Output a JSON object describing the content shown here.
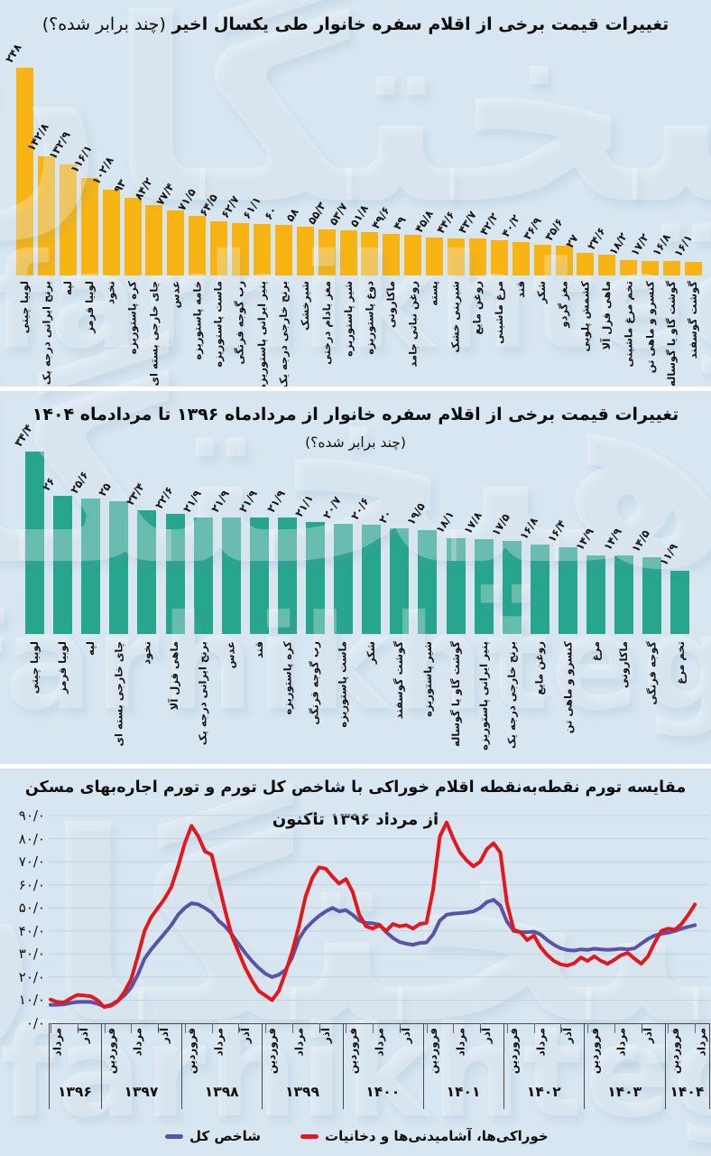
{
  "watermark": {
    "fa": "فرهیختگان",
    "en": "farhikhtegan"
  },
  "chart_data": [
    {
      "type": "bar",
      "title": "تغییرات قیمت برخی از اقلام سفره خانوار طی یکسال اخیر",
      "subtitle": "(چند برابر شده؟)",
      "bar_color": "#f7b412",
      "categories": [
        "لوبیا چیتی",
        "برنج ایرانی درجه یک",
        "لپه",
        "لوبیا قرمز",
        "نخود",
        "کره پاستوریزه",
        "چای خارجی بسته ای",
        "عدس",
        "خامه پاستوریزه",
        "ماست پاستوریزه",
        "رب گوجه فرنگی",
        "پنیر ایرانی پاستوریزه",
        "برنج خارجی درجه یک",
        "شیرخشک",
        "مغز بادام درختی",
        "شیر پاستوریزه",
        "دوغ پاستوریزه",
        "ماکارونی",
        "روغن نباتی جامد",
        "پسته",
        "شیرینی خشک",
        "روغن مایع",
        "مرغ ماشینی",
        "قند",
        "شکر",
        "مغز گردو",
        "کشمش پلویی",
        "ماهی قزل آلا",
        "تخم مرغ ماشینی",
        "کنسرو و ماهی تن",
        "گوشت گاو یا گوساله",
        "گوشت گوسفند"
      ],
      "values": [
        248,
        142.8,
        132.9,
        116.1,
        102.8,
        93,
        84.2,
        77.4,
        71.5,
        64.5,
        62.7,
        61.1,
        60,
        58,
        55.3,
        53.7,
        51.8,
        49.6,
        49,
        45.8,
        44.6,
        43.7,
        42.2,
        40.2,
        36.9,
        35.6,
        27,
        24.6,
        18.2,
        17.2,
        16.8,
        16.1
      ],
      "value_labels": [
        "۲۴۸",
        "۱۴۲/۸",
        "۱۳۲/۹",
        "۱۱۶/۱",
        "۱۰۲/۸",
        "۹۳",
        "۸۴/۲",
        "۷۷/۴",
        "۷۱/۵",
        "۶۴/۵",
        "۶۲/۷",
        "۶۱/۱",
        "۶۰",
        "۵۸",
        "۵۵/۳",
        "۵۳/۷",
        "۵۱/۸",
        "۴۹/۶",
        "۴۹",
        "۴۵/۸",
        "۴۴/۶",
        "۴۳/۷",
        "۴۲/۲",
        "۴۰/۲",
        "۳۶/۹",
        "۳۵/۶",
        "۲۷",
        "۲۴/۶",
        "۱۸/۲",
        "۱۷/۲",
        "۱۶/۸",
        "۱۶/۱"
      ]
    },
    {
      "type": "bar",
      "title": "تغییرات قیمت برخی از اقلام سفره خانوار از مردادماه ۱۳۹۶ تا مردادماه ۱۴۰۴",
      "subtitle": "(چند برابر شده؟)",
      "bar_color": "#28a58e",
      "categories": [
        "لوبیا چیتی",
        "لوبیا قرمز",
        "لپه",
        "چای خارجی بسته ای",
        "نخود",
        "ماهی قزل آلا",
        "برنج ایرانی درجه یک",
        "عدس",
        "قند",
        "کره پاستوریزه",
        "رب گوجه فرنگی",
        "ماست پاستوریزه",
        "شکر",
        "گوشت گوسفند",
        "شیر پاستوریزه",
        "گوشت گاو یا گوساله",
        "پنیر ایرانی پاستوریزه",
        "برنج خارجی درجه یک",
        "روغن مایع",
        "کنسرو و ماهی تن",
        "مرغ",
        "ماکارونی",
        "گوجه فرنگی",
        "تخم مرغ"
      ],
      "values": [
        34.4,
        26,
        25.6,
        25,
        23.4,
        22.6,
        21.9,
        21.9,
        21.9,
        21.9,
        21.1,
        20.7,
        20.6,
        20,
        19.5,
        18.1,
        17.8,
        17.5,
        16.8,
        16.4,
        14.9,
        14.9,
        14.5,
        11.9
      ],
      "value_labels": [
        "۳۴/۴",
        "۲۶",
        "۲۵/۶",
        "۲۵",
        "۲۳/۴",
        "۲۲/۶",
        "۲۱/۹",
        "۲۱/۹",
        "۲۱/۹",
        "۲۱/۹",
        "۲۱/۱",
        "۲۰/۷",
        "۲۰/۶",
        "۲۰",
        "۱۹/۵",
        "۱۸/۱",
        "۱۷/۸",
        "۱۷/۵",
        "۱۶/۸",
        "۱۶/۴",
        "۱۴/۹",
        "۱۴/۹",
        "۱۴/۵",
        "۱۱/۹"
      ]
    },
    {
      "type": "line",
      "title": "مقایسه تورم نقطه‌به‌نقطه اقلام خوراکی با شاخص کل تورم و تورم اجاره‌بهای مسکن",
      "title_line2": "از مرداد ۱۳۹۶ تاکنون",
      "ylim": [
        0,
        90
      ],
      "y_ticks": [
        "۹۰/۰",
        "۸۰/۰",
        "۷۰/۰",
        "۶۰/۰",
        "۵۰/۰",
        "۴۰/۰",
        "۳۰/۰",
        "۲۰/۰",
        "۱۰/۰",
        "۰/۰"
      ],
      "x_years": [
        {
          "year": "۱۳۹۶",
          "months": [
            "مرداد",
            "آذر"
          ]
        },
        {
          "year": "۱۳۹۷",
          "months": [
            "فروردین",
            "مرداد",
            "آذر"
          ]
        },
        {
          "year": "۱۳۹۸",
          "months": [
            "فروردین",
            "مرداد",
            "آذر"
          ]
        },
        {
          "year": "۱۳۹۹",
          "months": [
            "فروردین",
            "مرداد",
            "آذر"
          ]
        },
        {
          "year": "۱۴۰۰",
          "months": [
            "فروردین",
            "مرداد",
            "آذر"
          ]
        },
        {
          "year": "۱۴۰۱",
          "months": [
            "فروردین",
            "مرداد",
            "آذر"
          ]
        },
        {
          "year": "۱۴۰۲",
          "months": [
            "فروردین",
            "مرداد",
            "آذر"
          ]
        },
        {
          "year": "۱۴۰۳",
          "months": [
            "فروردین",
            "مرداد",
            "آذر"
          ]
        },
        {
          "year": "۱۴۰۴",
          "months": [
            "فروردین",
            "مرداد"
          ]
        }
      ],
      "series": [
        {
          "name": "خوراکی‌ها، آشامیدنی‌ها و دخانیات",
          "color": "#e2181d",
          "values": [
            10.3,
            9.2,
            9,
            10.8,
            12.3,
            12,
            11.7,
            10,
            7,
            7.6,
            9.5,
            13.5,
            19,
            29,
            40,
            46,
            50,
            54,
            59,
            68,
            78,
            85.5,
            81,
            74.5,
            73,
            61,
            49,
            38,
            31,
            24,
            18.5,
            14,
            12,
            10,
            14,
            22,
            31,
            42,
            55,
            63,
            67.5,
            67,
            63.5,
            60.5,
            62.5,
            57,
            47,
            42,
            41,
            42.5,
            40,
            43,
            42,
            42.5,
            41,
            43,
            43.5,
            58,
            81,
            87,
            80,
            74,
            70.5,
            68,
            70,
            75.5,
            78,
            74,
            52,
            40.5,
            39.5,
            36,
            38,
            33,
            29.5,
            27,
            25.5,
            25,
            26,
            28.5,
            27,
            29,
            27,
            25.8,
            27.5,
            29.5,
            30.5,
            28,
            25.8,
            29,
            35,
            40,
            41,
            40.5,
            43,
            47,
            51.5
          ]
        },
        {
          "name": "شاخص کل",
          "color": "#5a52a5",
          "values": [
            8,
            8,
            8.2,
            8.8,
            9.2,
            9.3,
            9.2,
            8.5,
            7.2,
            8,
            9.7,
            12,
            15.5,
            21,
            28,
            32,
            35.5,
            39,
            42.5,
            47,
            50,
            52,
            51.5,
            50,
            48,
            44.5,
            42,
            38.5,
            34.5,
            30.5,
            27,
            24,
            21.5,
            20,
            21,
            23,
            28.5,
            36.5,
            41,
            44,
            46.5,
            48.5,
            50,
            48.5,
            49,
            47,
            44.5,
            43.5,
            43.3,
            42.7,
            39.5,
            37,
            35.2,
            34.5,
            34,
            34.8,
            35,
            38.5,
            44.5,
            47,
            47.5,
            47.7,
            48,
            48.5,
            50,
            52.5,
            53.5,
            51,
            44,
            40,
            39.5,
            39.5,
            39.7,
            38.5,
            36,
            34,
            32.5,
            31.7,
            31.5,
            32,
            31.8,
            32.3,
            32,
            31.8,
            32,
            32.3,
            32,
            32.5,
            34.5,
            36.5,
            38,
            38.8,
            39.2,
            40,
            41,
            41.8,
            42.5
          ]
        }
      ]
    }
  ]
}
